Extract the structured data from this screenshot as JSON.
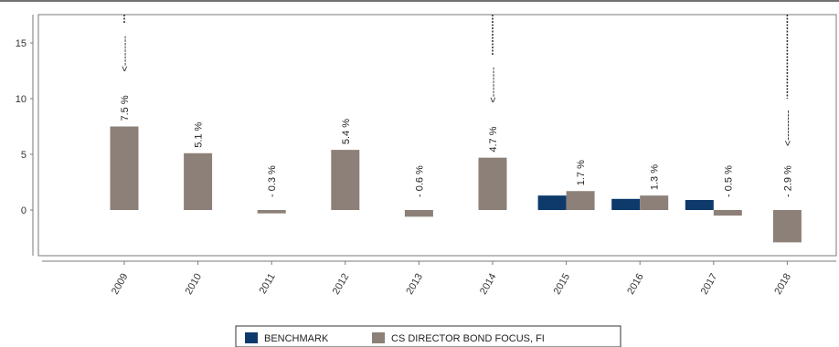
{
  "chart_data": {
    "type": "bar",
    "title": "",
    "xlabel": "",
    "ylabel": "",
    "categories": [
      "2009",
      "2010",
      "2011",
      "2012",
      "2013",
      "2014",
      "2015",
      "2016",
      "2017",
      "2018"
    ],
    "series": [
      {
        "name": "BENCHMARK",
        "color": "#0d3a6b",
        "values": [
          null,
          null,
          null,
          null,
          null,
          null,
          1.3,
          1.0,
          0.9,
          null
        ]
      },
      {
        "name": "CS DIRECTOR BOND FOCUS, FI",
        "color": "#8c8078",
        "values": [
          7.5,
          5.1,
          -0.3,
          5.4,
          -0.6,
          4.7,
          1.7,
          1.3,
          -0.5,
          -2.9
        ]
      }
    ],
    "data_labels": [
      "7.5 %",
      "5.1 %",
      "- 0.3 %",
      "5.4 %",
      "- 0.6 %",
      "4.7 %",
      "1.7 %",
      "1.3 %",
      "- 0.5 %",
      "- 2.9 %"
    ],
    "marker_categories": [
      "2009",
      "2014",
      "2018"
    ],
    "marker_arrow": "<---------",
    "ylim": [
      -4,
      17
    ],
    "yticks": [
      0,
      5,
      10,
      15
    ],
    "grid": false,
    "legend_position": "bottom-center"
  }
}
